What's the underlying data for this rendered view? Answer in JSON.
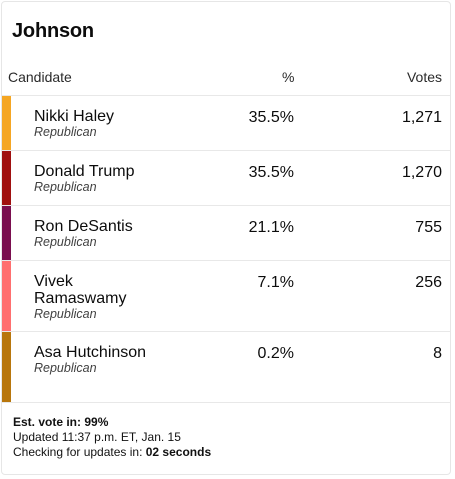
{
  "title": "Johnson",
  "columns": {
    "candidate": "Candidate",
    "percent": "%",
    "votes": "Votes"
  },
  "candidates": [
    {
      "name": "Nikki Haley",
      "party": "Republican",
      "percent": "35.5%",
      "votes": "1,271",
      "color": "#f5a623"
    },
    {
      "name": "Donald Trump",
      "party": "Republican",
      "percent": "35.5%",
      "votes": "1,270",
      "color": "#a0100f"
    },
    {
      "name": "Ron DeSantis",
      "party": "Republican",
      "percent": "21.1%",
      "votes": "755",
      "color": "#7a0e4f"
    },
    {
      "name": "Vivek Ramaswamy",
      "party": "Republican",
      "percent": "7.1%",
      "votes": "256",
      "color": "#ff6f6f"
    },
    {
      "name": "Asa Hutchinson",
      "party": "Republican",
      "percent": "0.2%",
      "votes": "8",
      "color": "#b8760c"
    }
  ],
  "footer": {
    "est_vote": "Est. vote in: 99%",
    "updated": "Updated 11:37 p.m. ET, Jan. 15",
    "checking_prefix": "Checking for updates in: ",
    "checking_value": "02 seconds"
  }
}
